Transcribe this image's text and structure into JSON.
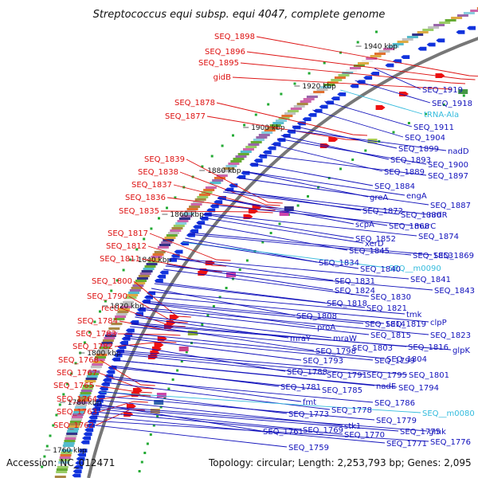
{
  "title": "Streptococcus equi subsp. equi 4047, complete genome",
  "accession": "Accession: NC_012471",
  "summary": "Topology: circular; Length: 2,253,793 bp; Genes: 2,095",
  "colors": {
    "left_label": "#dd1111",
    "right_label": "#1111bb",
    "rna_label": "#33bbdd",
    "forward_strand": "#ee1111",
    "reverse_strand": "#1133dd",
    "backbone": "#777777"
  },
  "kbp_marks": [
    "1940 kbp",
    "1920 kbp",
    "1900 kbp",
    "1880 kbp",
    "1860 kbp",
    "1840 kbp",
    "1820 kbp",
    "1800 kbp",
    "1780 kbp",
    "1760 kbp"
  ],
  "left_labels": [
    "SEQ_1898",
    "SEQ_1896",
    "SEQ_1895",
    "gidB",
    "SEQ_1878",
    "SEQ_1877",
    "SEQ_1839",
    "SEQ_1838",
    "SEQ_1837",
    "SEQ_1836",
    "SEQ_1835",
    "SEQ_1817",
    "SEQ_1812",
    "SEQ_1811",
    "SEQ_1800",
    "SEQ_1790",
    "recU",
    "SEQ_1784",
    "SEQ_1783",
    "SEQ_1782",
    "SEQ_1768",
    "SEQ_1767",
    "SEQ_1765",
    "SEQ_1764",
    "SEQ_1763",
    "SEQ_1762"
  ],
  "right_labels": [
    {
      "text": "SEQ_1919",
      "rna": false
    },
    {
      "text": "SEQ_1918",
      "rna": false
    },
    {
      "text": "tRNA-Ala",
      "rna": true
    },
    {
      "text": "SEQ_1911",
      "rna": false
    },
    {
      "text": "SEQ_1904",
      "rna": false
    },
    {
      "text": "nadD",
      "rna": false
    },
    {
      "text": "SEQ_1899",
      "rna": false
    },
    {
      "text": "SEQ_1893",
      "rna": false
    },
    {
      "text": "SEQ_1900",
      "rna": false
    },
    {
      "text": "SEQ_1889",
      "rna": false
    },
    {
      "text": "SEQ_1897",
      "rna": false
    },
    {
      "text": "SEQ_1884",
      "rna": false
    },
    {
      "text": "engA",
      "rna": false
    },
    {
      "text": "greA",
      "rna": false
    },
    {
      "text": "SEQ_1887",
      "rna": false
    },
    {
      "text": "SEQ_1872",
      "rna": false
    },
    {
      "text": "SEQ_1880",
      "rna": false
    },
    {
      "text": "nrdR",
      "rna": false
    },
    {
      "text": "scpA",
      "rna": false
    },
    {
      "text": "SEQ_1868",
      "rna": false
    },
    {
      "text": "murC",
      "rna": false
    },
    {
      "text": "SEQ_1874",
      "rna": false
    },
    {
      "text": "SEQ_1852",
      "rna": false
    },
    {
      "text": "xerD",
      "rna": false
    },
    {
      "text": "SEQ_1845",
      "rna": false
    },
    {
      "text": "SEQ_1853",
      "rna": false
    },
    {
      "text": "SEQ_1869",
      "rna": false
    },
    {
      "text": "SEQ_1834",
      "rna": false
    },
    {
      "text": "SEQ__m0090",
      "rna": true
    },
    {
      "text": "SEQ_1840",
      "rna": false
    },
    {
      "text": "SEQ_1841",
      "rna": false
    },
    {
      "text": "SEQ_1831",
      "rna": false
    },
    {
      "text": "SEQ_1843",
      "rna": false
    },
    {
      "text": "SEQ_1824",
      "rna": false
    },
    {
      "text": "SEQ_1830",
      "rna": false
    },
    {
      "text": "SEQ_1818",
      "rna": false
    },
    {
      "text": "tmk",
      "rna": false
    },
    {
      "text": "SEQ_1821",
      "rna": false
    },
    {
      "text": "clpP",
      "rna": false
    },
    {
      "text": "SEQ_1808",
      "rna": false
    },
    {
      "text": "SEQ_1814",
      "rna": false
    },
    {
      "text": "SEQ_1819",
      "rna": false
    },
    {
      "text": "proA",
      "rna": false
    },
    {
      "text": "SEQ_1815",
      "rna": false
    },
    {
      "text": "SEQ_1823",
      "rna": false
    },
    {
      "text": "mraY",
      "rna": false
    },
    {
      "text": "mraW",
      "rna": false
    },
    {
      "text": "SEQ_1816",
      "rna": false
    },
    {
      "text": "glpK",
      "rna": false
    },
    {
      "text": "SEQ_1798",
      "rna": false
    },
    {
      "text": "SEQ_1803",
      "rna": false
    },
    {
      "text": "SEQ_1793",
      "rna": false
    },
    {
      "text": "SEQ_1799",
      "rna": false
    },
    {
      "text": "SEQ_1804",
      "rna": false
    },
    {
      "text": "SEQ_1788",
      "rna": false
    },
    {
      "text": "SEQ_1791",
      "rna": false
    },
    {
      "text": "SEQ_1795",
      "rna": false
    },
    {
      "text": "SEQ_1801",
      "rna": false
    },
    {
      "text": "nadE",
      "rna": false
    },
    {
      "text": "SEQ_1794",
      "rna": false
    },
    {
      "text": "SEQ_1781",
      "rna": false
    },
    {
      "text": "SEQ_1785",
      "rna": false
    },
    {
      "text": "SEQ_1786",
      "rna": false
    },
    {
      "text": "fmt",
      "rna": false
    },
    {
      "text": "SEQ_1778",
      "rna": false
    },
    {
      "text": "SEQ__m0080",
      "rna": true
    },
    {
      "text": "SEQ_1773",
      "rna": false
    },
    {
      "text": "SEQ_1779",
      "rna": false
    },
    {
      "text": "stk1",
      "rna": false
    },
    {
      "text": "SEQ_1761",
      "rna": false
    },
    {
      "text": "SEQ_1769",
      "rna": false
    },
    {
      "text": "SEQ_1770",
      "rna": false
    },
    {
      "text": "SEQ_1775",
      "rna": false
    },
    {
      "text": "gmk",
      "rna": false
    },
    {
      "text": "SEQ_1771",
      "rna": false
    },
    {
      "text": "SEQ_1776",
      "rna": false
    },
    {
      "text": "SEQ_1759",
      "rna": false
    }
  ]
}
